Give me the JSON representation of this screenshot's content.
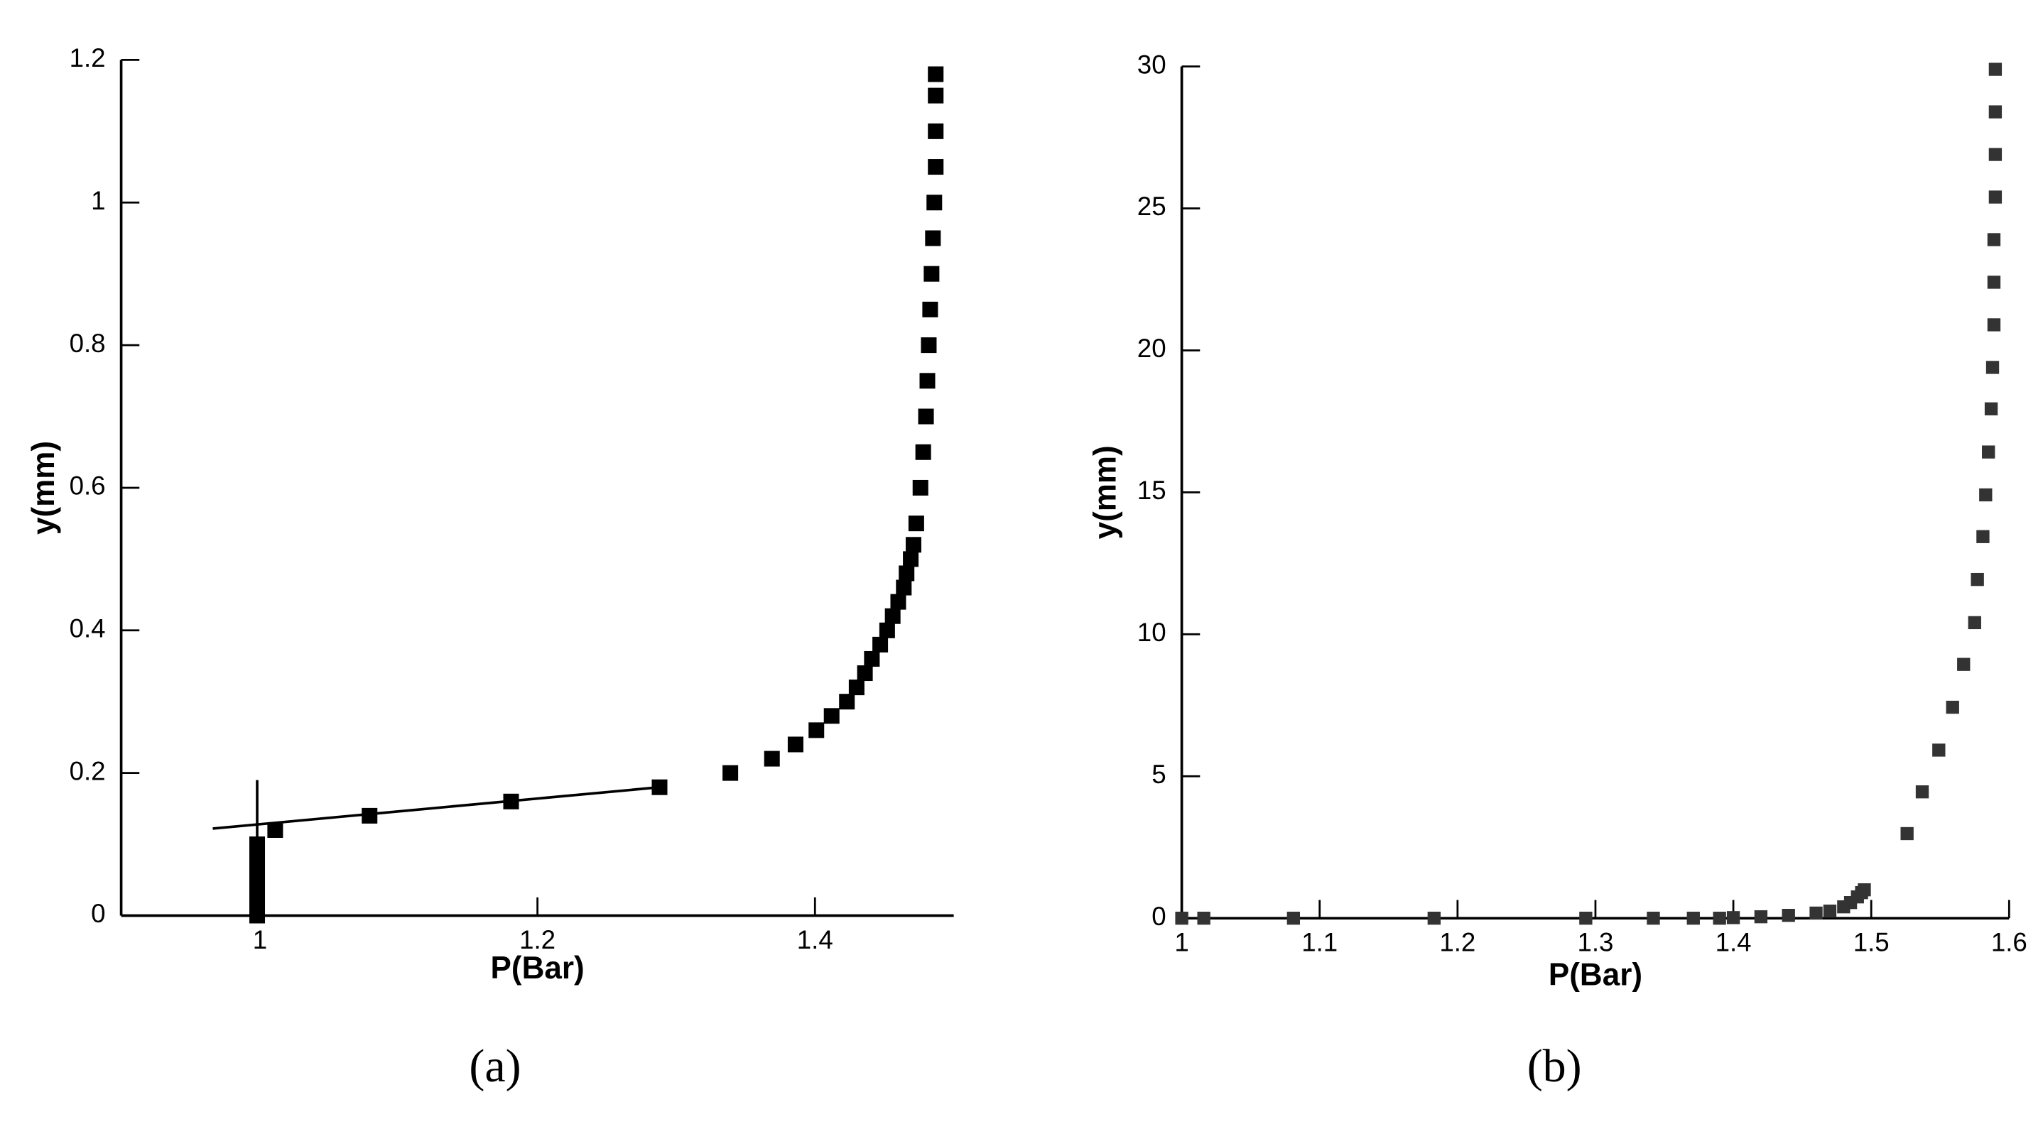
{
  "chart_data": [
    {
      "type": "scatter",
      "caption": "(a)",
      "x_label": "P(Bar)",
      "y_label": "y(mm)",
      "color": "#000000",
      "x": [
        0.998,
        0.998,
        0.998,
        0.998,
        0.998,
        0.998,
        1.011,
        1.079,
        1.181,
        1.288,
        1.339,
        1.369,
        1.386,
        1.401,
        1.412,
        1.423,
        1.43,
        1.436,
        1.441,
        1.447,
        1.452,
        1.456,
        1.46,
        1.464,
        1.466,
        1.469,
        1.471,
        1.473,
        1.476,
        1.478,
        1.48,
        1.481,
        1.482,
        1.483,
        1.484,
        1.485,
        1.486,
        1.487,
        1.487,
        1.487,
        1.487
      ],
      "values": [
        0,
        0.02,
        0.04,
        0.06,
        0.08,
        0.1,
        0.12,
        0.14,
        0.16,
        0.18,
        0.2,
        0.22,
        0.24,
        0.26,
        0.28,
        0.3,
        0.32,
        0.34,
        0.36,
        0.38,
        0.4,
        0.42,
        0.44,
        0.46,
        0.48,
        0.5,
        0.52,
        0.55,
        0.6,
        0.65,
        0.7,
        0.75,
        0.8,
        0.85,
        0.9,
        0.95,
        1,
        1.05,
        1.1,
        1.15,
        1.18
      ],
      "lines": [
        {
          "x": [
            0.966,
            1.288
          ],
          "y": [
            0.122,
            0.18
          ]
        },
        {
          "x": [
            0.998,
            0.998
          ],
          "y": [
            0,
            0.19
          ]
        }
      ],
      "xlim": [
        0.9,
        1.5
      ],
      "xticks": [
        1,
        1.2,
        1.4
      ],
      "ylim": [
        0,
        1.2
      ],
      "yticks": [
        0,
        0.2,
        0.4,
        0.6,
        0.8,
        1,
        1.2
      ]
    },
    {
      "type": "scatter",
      "caption": "(b)",
      "x_label": "P(Bar)",
      "y_label": "y(mm)",
      "color": "#333333",
      "x": [
        1.0,
        1.016,
        1.081,
        1.183,
        1.293,
        1.342,
        1.371,
        1.39,
        1.4,
        1.42,
        1.44,
        1.46,
        1.47,
        1.48,
        1.485,
        1.49,
        1.493,
        1.495,
        1.526,
        1.537,
        1.549,
        1.559,
        1.567,
        1.575,
        1.577,
        1.581,
        1.583,
        1.585,
        1.587,
        1.588,
        1.589,
        1.589,
        1.589,
        1.59,
        1.59,
        1.59,
        1.59
      ],
      "values": [
        0,
        0,
        0,
        0,
        0,
        0,
        0,
        0,
        0.02,
        0.05,
        0.1,
        0.18,
        0.25,
        0.4,
        0.55,
        0.75,
        0.9,
        1.0,
        2.98,
        4.45,
        5.92,
        7.43,
        8.94,
        10.41,
        11.93,
        13.44,
        14.91,
        16.42,
        17.94,
        19.4,
        20.9,
        22.4,
        23.9,
        25.4,
        26.9,
        28.4,
        29.9
      ],
      "xlim": [
        1,
        1.6
      ],
      "xticks": [
        1,
        1.1,
        1.2,
        1.3,
        1.4,
        1.5,
        1.6
      ],
      "ylim": [
        0,
        30
      ],
      "yticks": [
        0,
        5,
        10,
        15,
        20,
        25,
        30
      ]
    }
  ]
}
